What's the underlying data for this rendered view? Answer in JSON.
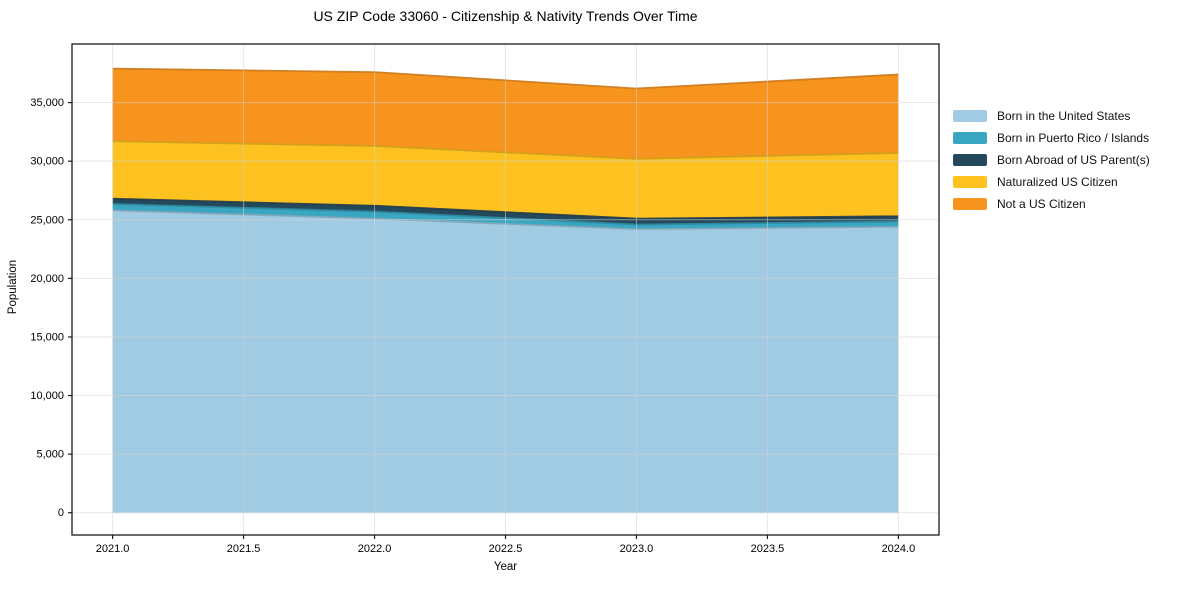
{
  "page": {
    "background": "#ffffff"
  },
  "chart_data": {
    "type": "area",
    "stacked": true,
    "title": "US ZIP Code 33060 - Citizenship & Nativity Trends Over Time",
    "xlabel": "Year",
    "ylabel": "Population",
    "x": [
      2021,
      2022,
      2023,
      2024
    ],
    "series": [
      {
        "name": "Born in the United States",
        "color": "#A1CBE2",
        "values": [
          25800,
          25100,
          24200,
          24400
        ]
      },
      {
        "name": "Born in Puerto Rico / Islands",
        "color": "#39A6C2",
        "values": [
          550,
          600,
          400,
          450
        ]
      },
      {
        "name": "Born Abroad of US Parent(s)",
        "color": "#25495C",
        "values": [
          450,
          500,
          500,
          450
        ]
      },
      {
        "name": "Naturalized US Citizen",
        "color": "#FDC220",
        "values": [
          4900,
          5100,
          5100,
          5400
        ]
      },
      {
        "name": "Not a US Citizen",
        "color": "#F7941E",
        "values": [
          6200,
          6300,
          6000,
          6700
        ]
      }
    ],
    "totals": [
      37900,
      37600,
      36200,
      37400
    ],
    "xlim": [
      2020.845,
      2024.155
    ],
    "ylim": [
      -1900,
      40000
    ],
    "x_tick_values": [
      2021.0,
      2021.5,
      2022.0,
      2022.5,
      2023.0,
      2023.5,
      2024.0
    ],
    "x_tick_labels": [
      "2021.0",
      "2021.5",
      "2022.0",
      "2022.5",
      "2023.0",
      "2023.5",
      "2024.0"
    ],
    "y_tick_values": [
      0,
      5000,
      10000,
      15000,
      20000,
      25000,
      30000,
      35000
    ],
    "y_tick_labels": [
      "0",
      "5,000",
      "10,000",
      "15,000",
      "20,000",
      "25,000",
      "30,000",
      "35,000"
    ],
    "grid": true,
    "grid_color": "#d4d4d4",
    "spine_color": "#1a1a1a",
    "legend_position": "right"
  }
}
